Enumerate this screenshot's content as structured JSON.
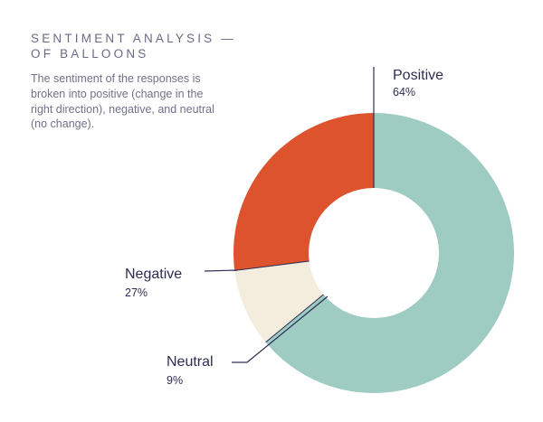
{
  "header": {
    "title_line1": "SENTIMENT ANALYSIS —",
    "title_line2": "OF BALLOONS",
    "description": "The sentiment of the responses is broken into positive (change in the right direction), negative, and neutral (no change)."
  },
  "chart_data": {
    "type": "pie",
    "variant": "donut",
    "title": "SENTIMENT ANALYSIS — OF BALLOONS",
    "series": [
      {
        "name": "Positive",
        "value": 64,
        "label": "64%",
        "color": "#9ecbc2"
      },
      {
        "name": "Neutral",
        "value": 9,
        "label": "9%",
        "color": "#f4ecdc"
      },
      {
        "name": "Negative",
        "value": 27,
        "label": "27%",
        "color": "#dc532d"
      }
    ],
    "start_angle": "12 o'clock",
    "direction": "clockwise",
    "legend": "none"
  }
}
